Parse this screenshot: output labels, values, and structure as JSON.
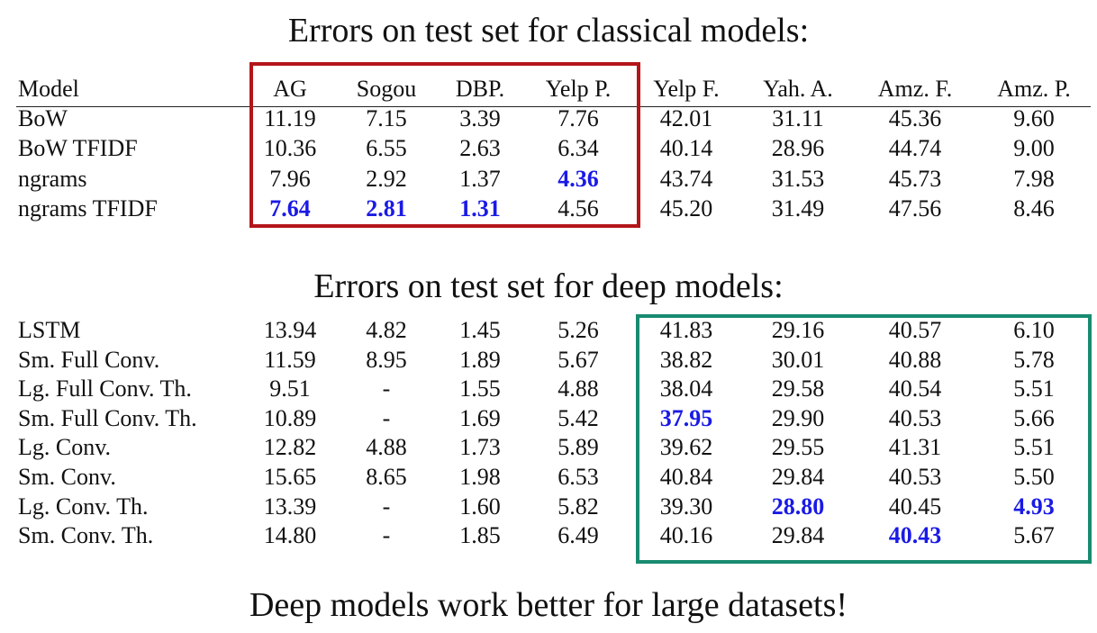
{
  "title_classical": "Errors on test set for classical models:",
  "title_deep": "Errors on test set for deep models:",
  "conclusion": "Deep models work better for large datasets!",
  "highlight_colors": {
    "classical_box": "#b3161a",
    "deep_box": "#188b70",
    "best_value": "#1a1ae6"
  },
  "header": [
    "Model",
    "AG",
    "Sogou",
    "DBP.",
    "Yelp P.",
    "Yelp F.",
    "Yah. A.",
    "Amz. F.",
    "Amz. P."
  ],
  "classical_rows": [
    {
      "name": "BoW",
      "values": [
        "11.19",
        "7.15",
        "3.39",
        "7.76",
        "42.01",
        "31.11",
        "45.36",
        "9.60"
      ],
      "best": []
    },
    {
      "name": "BoW TFIDF",
      "values": [
        "10.36",
        "6.55",
        "2.63",
        "6.34",
        "40.14",
        "28.96",
        "44.74",
        "9.00"
      ],
      "best": []
    },
    {
      "name": "ngrams",
      "values": [
        "7.96",
        "2.92",
        "1.37",
        "4.36",
        "43.74",
        "31.53",
        "45.73",
        "7.98"
      ],
      "best": [
        3
      ]
    },
    {
      "name": "ngrams TFIDF",
      "values": [
        "7.64",
        "2.81",
        "1.31",
        "4.56",
        "45.20",
        "31.49",
        "47.56",
        "8.46"
      ],
      "best": [
        0,
        1,
        2
      ]
    }
  ],
  "deep_rows": [
    {
      "name": "LSTM",
      "values": [
        "13.94",
        "4.82",
        "1.45",
        "5.26",
        "41.83",
        "29.16",
        "40.57",
        "6.10"
      ],
      "best": []
    },
    {
      "name": "Sm. Full Conv.",
      "values": [
        "11.59",
        "8.95",
        "1.89",
        "5.67",
        "38.82",
        "30.01",
        "40.88",
        "5.78"
      ],
      "best": []
    },
    {
      "name": "Lg. Full Conv. Th.",
      "values": [
        "9.51",
        "-",
        "1.55",
        "4.88",
        "38.04",
        "29.58",
        "40.54",
        "5.51"
      ],
      "best": []
    },
    {
      "name": "Sm. Full Conv. Th.",
      "values": [
        "10.89",
        "-",
        "1.69",
        "5.42",
        "37.95",
        "29.90",
        "40.53",
        "5.66"
      ],
      "best": [
        4
      ]
    },
    {
      "name": "Lg. Conv.",
      "values": [
        "12.82",
        "4.88",
        "1.73",
        "5.89",
        "39.62",
        "29.55",
        "41.31",
        "5.51"
      ],
      "best": []
    },
    {
      "name": "Sm. Conv.",
      "values": [
        "15.65",
        "8.65",
        "1.98",
        "6.53",
        "40.84",
        "29.84",
        "40.53",
        "5.50"
      ],
      "best": []
    },
    {
      "name": "Lg. Conv. Th.",
      "values": [
        "13.39",
        "-",
        "1.60",
        "5.82",
        "39.30",
        "28.80",
        "40.45",
        "4.93"
      ],
      "best": [
        5,
        7
      ]
    },
    {
      "name": "Sm. Conv. Th.",
      "values": [
        "14.80",
        "-",
        "1.85",
        "6.49",
        "40.16",
        "29.84",
        "40.43",
        "5.67"
      ],
      "best": [
        6
      ]
    }
  ]
}
